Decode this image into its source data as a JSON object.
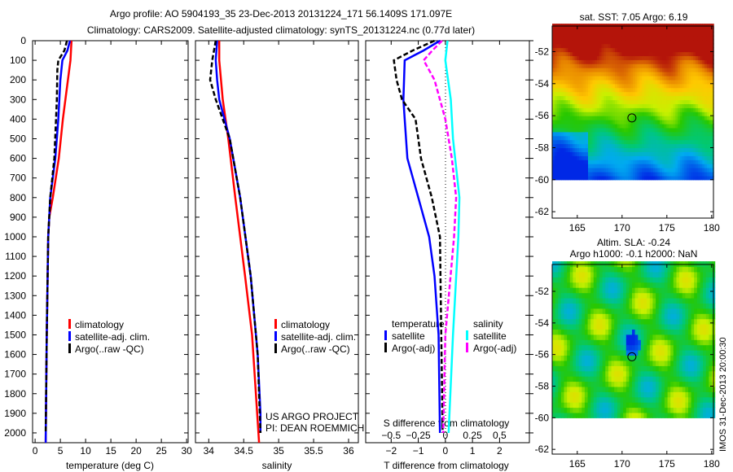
{
  "title_line1": "Argo profile: AO 5904193_35 23-Dec-2013 20131224_171 56.1409S 171.097E",
  "title_line2": "Climatology: CARS2009. Satellite-adjusted climatology: synTS_20131224.nc (0.77d later)",
  "colors": {
    "climatology": "#ff0000",
    "satellite": "#0000ff",
    "argo": "#000000",
    "sal_satellite": "#00ffff",
    "sal_argo": "#ff00ff"
  },
  "chart_data": [
    {
      "type": "line",
      "title": "",
      "xlabel": "temperature (deg C)",
      "ylabel": "",
      "xlim": [
        -0.5,
        30.3
      ],
      "ylim": [
        2050,
        0
      ],
      "xticks": [
        0,
        5,
        10,
        15,
        20,
        25,
        30
      ],
      "xtick_labels": [
        "0",
        "5",
        "10",
        "15",
        "20",
        "25",
        "30"
      ],
      "yticks": [
        0,
        100,
        200,
        300,
        400,
        500,
        600,
        700,
        800,
        900,
        1000,
        1100,
        1200,
        1300,
        1400,
        1500,
        1600,
        1700,
        1800,
        1900,
        2000
      ],
      "ytick_labels": [
        "0",
        "100",
        "200",
        "300",
        "400",
        "500",
        "600",
        "700",
        "800",
        "900",
        "1000",
        "1100",
        "1200",
        "1300",
        "1400",
        "1500",
        "1600",
        "1700",
        "1800",
        "1900",
        "2000"
      ],
      "legend": [
        "climatology",
        "satellite-adj. clim.",
        "Argo(..raw -QC)"
      ],
      "legend_position": "lower-right",
      "series": [
        {
          "name": "climatology",
          "color": "#ff0000",
          "dash": false,
          "depth": [
            0,
            100,
            200,
            400,
            600,
            800,
            900,
            1000,
            1500,
            2050
          ],
          "values": [
            7.2,
            7.0,
            6.5,
            5.5,
            4.7,
            3.5,
            2.8,
            2.6,
            2.3,
            2.1
          ]
        },
        {
          "name": "satellite-adj. clim.",
          "color": "#0000ff",
          "dash": false,
          "depth": [
            0,
            50,
            100,
            200,
            400,
            600,
            800,
            1000,
            1500,
            2050
          ],
          "values": [
            6.9,
            6.4,
            5.4,
            5.0,
            4.6,
            4.0,
            3.0,
            2.6,
            2.3,
            2.1
          ]
        },
        {
          "name": "Argo(..raw -QC)",
          "color": "#000000",
          "dash": true,
          "depth": [
            0,
            50,
            100,
            150,
            300,
            600,
            800,
            1000,
            1500,
            2000
          ],
          "values": [
            6.3,
            5.8,
            4.6,
            4.4,
            4.3,
            3.8,
            3.0,
            2.6,
            2.3,
            2.1
          ]
        }
      ]
    },
    {
      "type": "line",
      "title": "",
      "xlabel": "salinity",
      "ylabel": "",
      "xlim": [
        33.81,
        36.14
      ],
      "ylim": [
        2050,
        0
      ],
      "xticks": [
        34,
        34.5,
        35,
        35.5,
        36
      ],
      "xtick_labels": [
        "34",
        "34.5",
        "35",
        "35.5",
        "36"
      ],
      "legend": [
        "climatology",
        "satellite-adj. clim.",
        "Argo(..raw -QC)"
      ],
      "legend_position": "lower-right",
      "annotation": [
        "US ARGO PROJECT",
        "PI: DEAN ROEMMICH"
      ],
      "series": [
        {
          "name": "climatology",
          "color": "#ff0000",
          "dash": false,
          "depth": [
            0,
            100,
            300,
            500,
            800,
            1200,
            1500,
            2050
          ],
          "values": [
            34.15,
            34.15,
            34.2,
            34.28,
            34.38,
            34.52,
            34.62,
            34.72
          ]
        },
        {
          "name": "satellite-adj. clim.",
          "color": "#0000ff",
          "dash": false,
          "depth": [
            0,
            100,
            200,
            300,
            500,
            800,
            1200,
            1600,
            1900,
            2000
          ],
          "values": [
            34.12,
            34.1,
            34.12,
            34.15,
            34.3,
            34.45,
            34.6,
            34.7,
            34.74,
            34.74
          ]
        },
        {
          "name": "Argo(..raw -QC)",
          "color": "#000000",
          "dash": true,
          "depth": [
            0,
            100,
            200,
            300,
            400,
            500,
            800,
            1200,
            1600,
            2000
          ],
          "values": [
            34.1,
            34.05,
            34.02,
            34.1,
            34.2,
            34.3,
            34.45,
            34.6,
            34.7,
            34.74
          ]
        }
      ]
    },
    {
      "type": "line",
      "title": "",
      "xlabel": "T difference from climatology",
      "x2label": "S difference from climatology",
      "xlim": [
        -2.94,
        3.1
      ],
      "x2lim": [
        -0.735,
        0.775
      ],
      "ylim": [
        2050,
        0
      ],
      "xticks": [
        -2,
        -1,
        0,
        1,
        2
      ],
      "xtick_labels": [
        "−2",
        "−1",
        "0",
        "1",
        "2"
      ],
      "x2ticks": [
        -0.5,
        -0.25,
        0,
        0.25,
        0.5
      ],
      "x2tick_labels": [
        "−0.5",
        "−0.25",
        "0",
        "0.25",
        "0.5"
      ],
      "legend_temperature": {
        "title": "temperature",
        "items": [
          "satellite",
          "Argo(-adj)"
        ]
      },
      "legend_salinity": {
        "title": "salinity",
        "items": [
          "satellite",
          "Argo(-adj)"
        ]
      },
      "series": [
        {
          "name": "T satellite",
          "axis": "T",
          "color": "#0000ff",
          "dash": false,
          "depth": [
            0,
            50,
            100,
            300,
            400,
            600,
            800,
            1000,
            1200,
            1500,
            2000
          ],
          "values": [
            -0.2,
            -0.8,
            -1.5,
            -1.55,
            -1.5,
            -1.4,
            -1.0,
            -0.6,
            -0.4,
            -0.25,
            -0.2
          ]
        },
        {
          "name": "T Argo(-adj)",
          "axis": "T",
          "color": "#000000",
          "dash": true,
          "depth": [
            0,
            50,
            100,
            200,
            300,
            400,
            500,
            600,
            800,
            1000,
            1500,
            2000
          ],
          "values": [
            -0.4,
            -1.2,
            -1.9,
            -1.8,
            -1.6,
            -1.1,
            -1.0,
            -0.9,
            -0.5,
            -0.2,
            -0.15,
            -0.1
          ]
        },
        {
          "name": "S satellite",
          "axis": "S",
          "color": "#00ffff",
          "dash": false,
          "depth": [
            0,
            100,
            300,
            500,
            800,
            1000,
            1500,
            2000
          ],
          "values": [
            0.02,
            0.0,
            0.05,
            0.07,
            0.13,
            0.12,
            0.07,
            0.03
          ]
        },
        {
          "name": "S Argo(-adj)",
          "axis": "S",
          "color": "#ff00ff",
          "dash": true,
          "depth": [
            0,
            50,
            100,
            200,
            400,
            600,
            800,
            1000,
            1500,
            2000
          ],
          "values": [
            -0.03,
            -0.12,
            -0.2,
            -0.1,
            0.0,
            0.06,
            0.1,
            0.08,
            0.0,
            -0.02
          ]
        }
      ]
    },
    {
      "type": "heatmap",
      "title": "sat. SST: 7.05 Argo: 6.19",
      "xlim": [
        162.2,
        180.2
      ],
      "ylim": [
        -62.4,
        -50.4
      ],
      "xticks": [
        165,
        170,
        175,
        180
      ],
      "xtick_labels": [
        "165",
        "170",
        "175",
        "180"
      ],
      "yticks": [
        -52,
        -54,
        -56,
        -58,
        -60,
        -62
      ],
      "ytick_labels": [
        "-52",
        "-54",
        "-56",
        "-58",
        "-60",
        "-62"
      ],
      "marker": {
        "lon": 171.097,
        "lat": -56.14
      }
    },
    {
      "type": "heatmap",
      "title": "Altim. SLA: -0.24",
      "subtitle": "Argo h1000: -0.1 h2000: NaN",
      "xlim": [
        162.2,
        180.2
      ],
      "ylim": [
        -62.3,
        -50.3
      ],
      "xticks": [
        165,
        170,
        175,
        180
      ],
      "xtick_labels": [
        "165",
        "170",
        "175",
        "180"
      ],
      "yticks": [
        -52,
        -54,
        -56,
        -58,
        -60,
        -62
      ],
      "ytick_labels": [
        "-52",
        "-54",
        "-56",
        "-58",
        "-60",
        "-62"
      ],
      "marker": {
        "lon": 171.097,
        "lat": -56.14
      },
      "side_label": "IMOS 31-Dec-2013 20:00:30"
    }
  ]
}
